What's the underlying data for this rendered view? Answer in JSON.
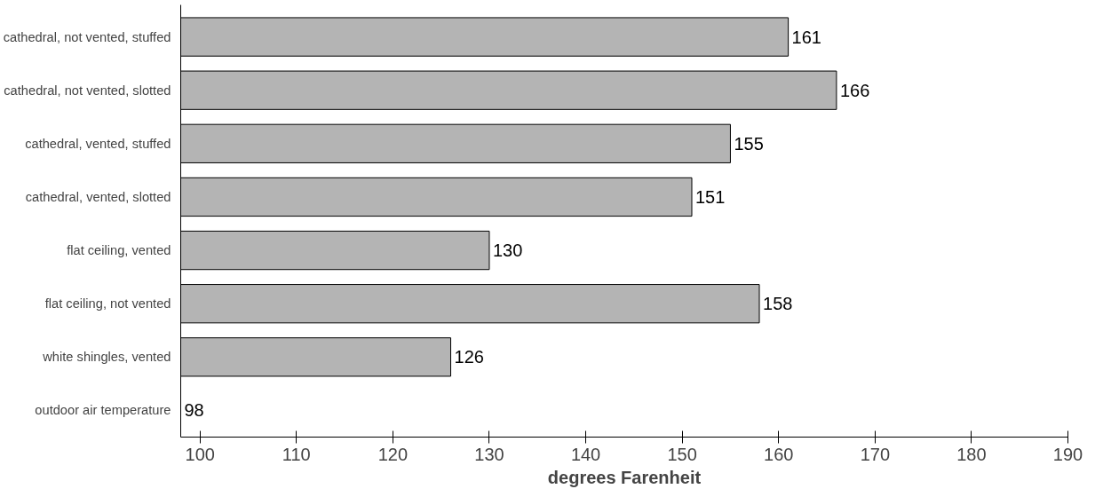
{
  "chart_data": {
    "type": "bar",
    "orientation": "horizontal",
    "xlabel": "degrees Farenheit",
    "categories": [
      "cathedral, not vented, stuffed",
      "cathedral, not vented, slotted",
      "cathedral, vented, stuffed",
      "cathedral, vented, slotted",
      "flat ceiling, vented",
      "flat ceiling, not vented",
      "white shingles, vented",
      "outdoor air temperature"
    ],
    "values": [
      161,
      166,
      155,
      151,
      130,
      158,
      126,
      98
    ],
    "color": "#b4b4b4",
    "data_labels": true,
    "xlim": [
      98,
      190
    ],
    "xticks": [
      100,
      110,
      120,
      130,
      140,
      150,
      160,
      170,
      180,
      190
    ],
    "grid": false
  }
}
